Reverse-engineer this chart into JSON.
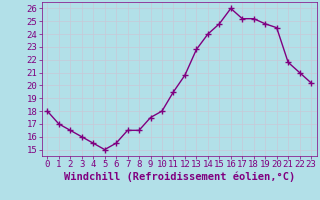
{
  "x": [
    0,
    1,
    2,
    3,
    4,
    5,
    6,
    7,
    8,
    9,
    10,
    11,
    12,
    13,
    14,
    15,
    16,
    17,
    18,
    19,
    20,
    21,
    22,
    23
  ],
  "y": [
    18.0,
    17.0,
    16.5,
    16.0,
    15.5,
    15.0,
    15.5,
    16.5,
    16.5,
    17.5,
    18.0,
    19.5,
    20.8,
    22.8,
    24.0,
    24.8,
    26.0,
    25.2,
    25.2,
    24.8,
    24.5,
    21.8,
    21.0,
    20.2
  ],
  "line_color": "#800080",
  "marker": "+",
  "marker_size": 4,
  "bg_color": "#b2e0e8",
  "grid_color": "#c8c8d8",
  "xlabel": "Windchill (Refroidissement éolien,°C)",
  "xlabel_color": "#800080",
  "ylabel_ticks": [
    15,
    16,
    17,
    18,
    19,
    20,
    21,
    22,
    23,
    24,
    25,
    26
  ],
  "xtick_labels": [
    "0",
    "1",
    "2",
    "3",
    "4",
    "5",
    "6",
    "7",
    "8",
    "9",
    "10",
    "11",
    "12",
    "13",
    "14",
    "15",
    "16",
    "17",
    "18",
    "19",
    "20",
    "21",
    "22",
    "23"
  ],
  "ylim": [
    14.5,
    26.5
  ],
  "xlim": [
    -0.5,
    23.5
  ],
  "tick_color": "#800080",
  "tick_fontsize": 6.5,
  "xlabel_fontsize": 7.5,
  "linewidth": 1.0
}
